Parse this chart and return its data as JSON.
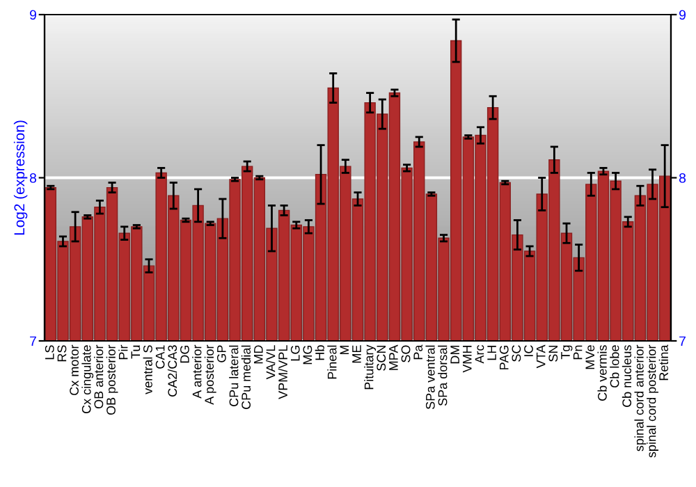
{
  "chart_data": {
    "type": "bar",
    "ylabel": "Log2 (expression)",
    "categories": [
      "LS",
      "RS",
      "Cx motor",
      "Cx cingulate",
      "OB anterior",
      "OB posterior",
      "Pir",
      "Tu",
      "ventral S",
      "CA1",
      "CA2/CA3",
      "DG",
      "A anterior",
      "A posterior",
      "GP",
      "CPu lateral",
      "CPu medial",
      "MD",
      "VA/VL",
      "VPM/VPL",
      "LG",
      "MG",
      "Hb",
      "Pineal",
      "M",
      "ME",
      "Pituitary",
      "SCN",
      "MPA",
      "SO",
      "Pa",
      "SPa ventral",
      "SPa dorsal",
      "DM",
      "VMH",
      "Arc",
      "LH",
      "PAG",
      "SC",
      "IC",
      "VTA",
      "SN",
      "Tg",
      "Pn",
      "MVe",
      "Cb vermis",
      "Cb lobe",
      "Cb nucleus",
      "spinal cord anterior",
      "spinal cord posterior",
      "Retina"
    ],
    "series": [
      {
        "color": "#b22c2c",
        "values": [
          7.94,
          7.61,
          7.7,
          7.76,
          7.82,
          7.94,
          7.66,
          7.7,
          7.46,
          8.03,
          7.89,
          7.74,
          7.83,
          7.72,
          7.75,
          7.99,
          8.07,
          8.0,
          7.69,
          7.8,
          7.71,
          7.7,
          8.02,
          8.55,
          8.07,
          7.87,
          8.46,
          8.39,
          8.52,
          8.06,
          8.22,
          7.9,
          7.63,
          8.84,
          8.25,
          8.26,
          8.43,
          7.97,
          7.65,
          7.55,
          7.9,
          8.11,
          7.66,
          7.51,
          7.96,
          8.04,
          7.98,
          7.73,
          7.89,
          7.96,
          8.01
        ],
        "errors": [
          0.01,
          0.03,
          0.09,
          0.01,
          0.04,
          0.03,
          0.04,
          0.01,
          0.04,
          0.03,
          0.08,
          0.01,
          0.1,
          0.01,
          0.12,
          0.01,
          0.03,
          0.01,
          0.14,
          0.03,
          0.02,
          0.04,
          0.18,
          0.09,
          0.04,
          0.04,
          0.06,
          0.09,
          0.02,
          0.02,
          0.03,
          0.01,
          0.02,
          0.13,
          0.01,
          0.05,
          0.07,
          0.01,
          0.09,
          0.03,
          0.1,
          0.08,
          0.06,
          0.08,
          0.07,
          0.02,
          0.05,
          0.03,
          0.06,
          0.09,
          0.19
        ]
      }
    ],
    "ylim": [
      7,
      9
    ],
    "yticks": [
      7,
      8,
      9
    ],
    "y2lim": [
      7,
      9
    ],
    "y2ticks": [
      7,
      8,
      9
    ],
    "grid": "y"
  }
}
